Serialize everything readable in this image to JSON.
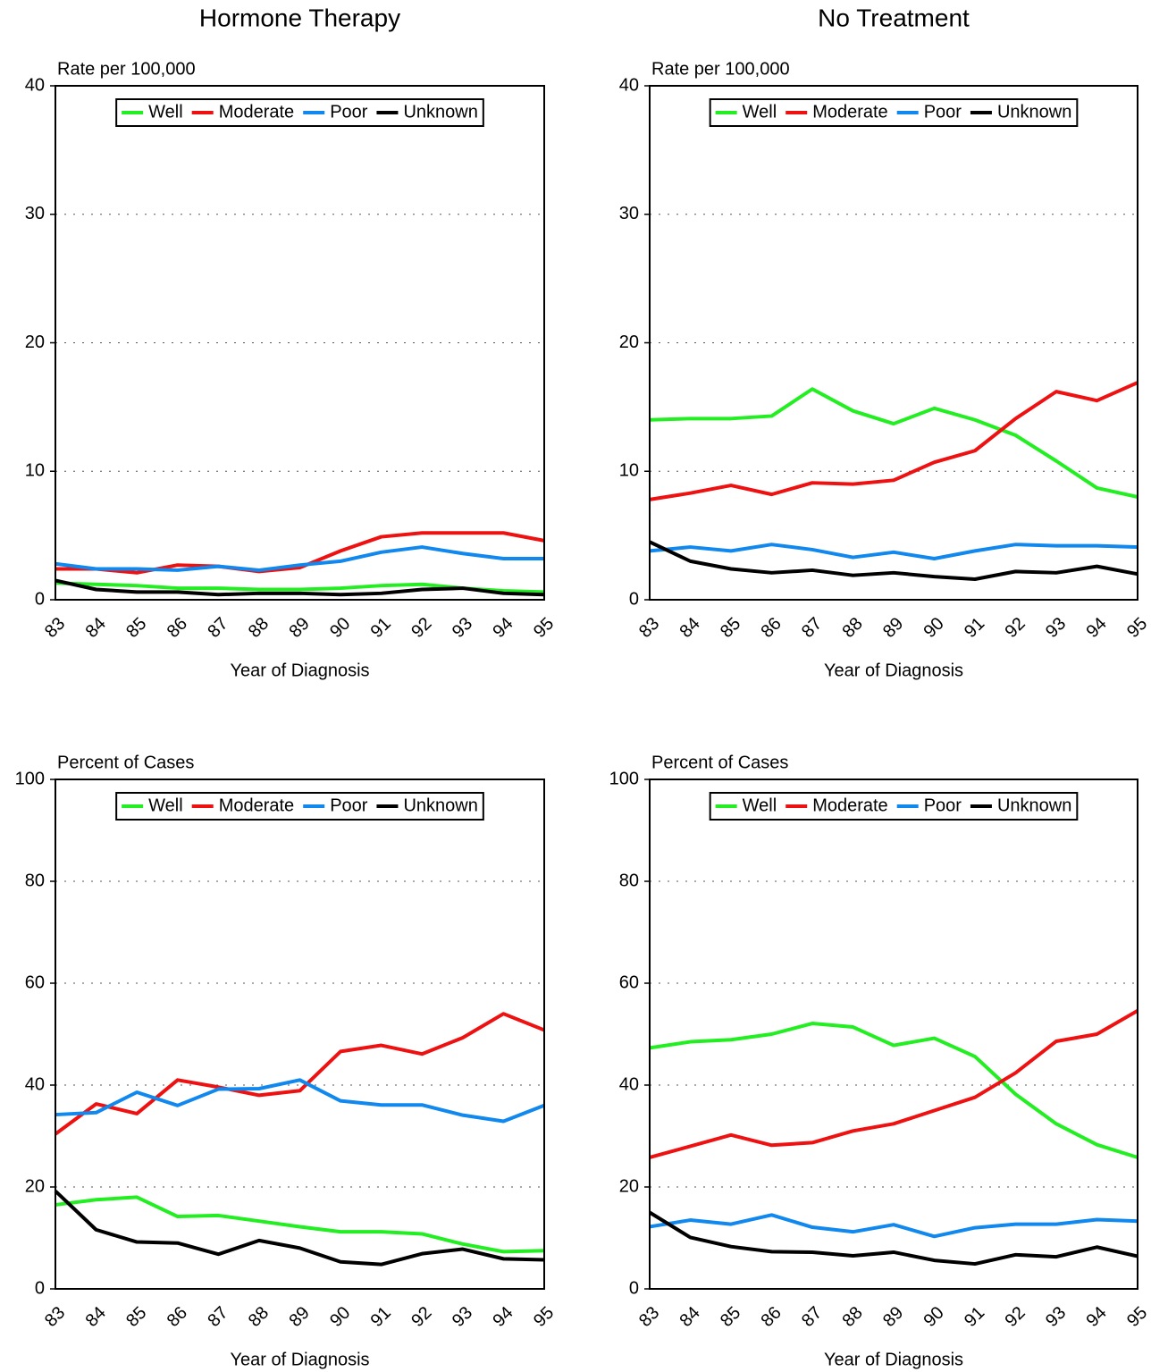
{
  "chart_data": [
    {
      "type": "line",
      "title": "Hormone Therapy",
      "y_label": "Rate per 100,000",
      "x_label": "Year of Diagnosis",
      "categories": [
        "83",
        "84",
        "85",
        "86",
        "87",
        "88",
        "89",
        "90",
        "91",
        "92",
        "93",
        "94",
        "95"
      ],
      "ylim": [
        0,
        40
      ],
      "yticks": [
        0,
        10,
        20,
        30,
        40
      ],
      "grid": true,
      "legend": "top",
      "series": [
        {
          "name": "Well",
          "color": "#22ee22",
          "values": [
            1.3,
            1.2,
            1.1,
            0.9,
            0.9,
            0.8,
            0.8,
            0.9,
            1.1,
            1.2,
            0.9,
            0.7,
            0.6
          ]
        },
        {
          "name": "Moderate",
          "color": "#ee1111",
          "values": [
            2.4,
            2.4,
            2.1,
            2.7,
            2.6,
            2.2,
            2.5,
            3.8,
            4.9,
            5.2,
            5.2,
            5.2,
            4.6
          ]
        },
        {
          "name": "Poor",
          "color": "#1188ee",
          "values": [
            2.8,
            2.4,
            2.4,
            2.3,
            2.6,
            2.3,
            2.7,
            3.0,
            3.7,
            4.1,
            3.6,
            3.2,
            3.2
          ]
        },
        {
          "name": "Unknown",
          "color": "#000000",
          "values": [
            1.5,
            0.8,
            0.6,
            0.6,
            0.4,
            0.5,
            0.5,
            0.4,
            0.5,
            0.8,
            0.9,
            0.5,
            0.4
          ]
        }
      ]
    },
    {
      "type": "line",
      "title": "No Treatment",
      "y_label": "Rate per 100,000",
      "x_label": "Year of Diagnosis",
      "categories": [
        "83",
        "84",
        "85",
        "86",
        "87",
        "88",
        "89",
        "90",
        "91",
        "92",
        "93",
        "94",
        "95"
      ],
      "ylim": [
        0,
        40
      ],
      "yticks": [
        0,
        10,
        20,
        30,
        40
      ],
      "grid": true,
      "legend": "top",
      "series": [
        {
          "name": "Well",
          "color": "#22ee22",
          "values": [
            14,
            14.1,
            14.1,
            14.3,
            16.4,
            14.7,
            13.7,
            14.9,
            14,
            12.8,
            10.8,
            8.7,
            8
          ]
        },
        {
          "name": "Moderate",
          "color": "#ee1111",
          "values": [
            7.8,
            8.3,
            8.9,
            8.2,
            9.1,
            9,
            9.3,
            10.7,
            11.6,
            14.1,
            16.2,
            15.5,
            16.9
          ]
        },
        {
          "name": "Poor",
          "color": "#1188ee",
          "values": [
            3.8,
            4.1,
            3.8,
            4.3,
            3.9,
            3.3,
            3.7,
            3.2,
            3.8,
            4.3,
            4.2,
            4.2,
            4.1
          ]
        },
        {
          "name": "Unknown",
          "color": "#000000",
          "values": [
            4.5,
            3,
            2.4,
            2.1,
            2.3,
            1.9,
            2.1,
            1.8,
            1.6,
            2.2,
            2.1,
            2.6,
            2
          ]
        }
      ]
    },
    {
      "type": "line",
      "y_label": "Percent of Cases",
      "x_label": "Year of Diagnosis",
      "categories": [
        "83",
        "84",
        "85",
        "86",
        "87",
        "88",
        "89",
        "90",
        "91",
        "92",
        "93",
        "94",
        "95"
      ],
      "ylim": [
        0,
        100
      ],
      "yticks": [
        0,
        20,
        40,
        60,
        80,
        100
      ],
      "grid": true,
      "legend": "top",
      "series": [
        {
          "name": "Well",
          "color": "#22ee22",
          "values": [
            16.5,
            17.5,
            18,
            14.2,
            14.4,
            13.3,
            12.2,
            11.2,
            11.2,
            10.8,
            8.8,
            7.3,
            7.5
          ]
        },
        {
          "name": "Moderate",
          "color": "#ee1111",
          "values": [
            30.4,
            36.3,
            34.4,
            41,
            39.6,
            38,
            38.9,
            46.6,
            47.8,
            46.1,
            49.3,
            54,
            50.8
          ]
        },
        {
          "name": "Poor",
          "color": "#1188ee",
          "values": [
            34.2,
            34.6,
            38.6,
            36,
            39.2,
            39.3,
            41,
            36.9,
            36.1,
            36.1,
            34.1,
            32.9,
            36
          ]
        },
        {
          "name": "Unknown",
          "color": "#000000",
          "values": [
            19.2,
            11.6,
            9.2,
            9,
            6.8,
            9.5,
            8,
            5.3,
            4.8,
            6.9,
            7.8,
            5.9,
            5.7
          ]
        }
      ]
    },
    {
      "type": "line",
      "y_label": "Percent of Cases",
      "x_label": "Year of Diagnosis",
      "categories": [
        "83",
        "84",
        "85",
        "86",
        "87",
        "88",
        "89",
        "90",
        "91",
        "92",
        "93",
        "94",
        "95"
      ],
      "ylim": [
        0,
        100
      ],
      "yticks": [
        0,
        20,
        40,
        60,
        80,
        100
      ],
      "grid": true,
      "legend": "top",
      "series": [
        {
          "name": "Well",
          "color": "#22ee22",
          "values": [
            47.3,
            48.5,
            48.9,
            50,
            52.1,
            51.4,
            47.8,
            49.2,
            45.6,
            38.2,
            32.4,
            28.3,
            25.8
          ]
        },
        {
          "name": "Moderate",
          "color": "#ee1111",
          "values": [
            25.8,
            28,
            30.2,
            28.2,
            28.7,
            31,
            32.4,
            35,
            37.6,
            42.4,
            48.6,
            50,
            54.6
          ]
        },
        {
          "name": "Poor",
          "color": "#1188ee",
          "values": [
            12.2,
            13.5,
            12.7,
            14.5,
            12.1,
            11.2,
            12.6,
            10.3,
            12,
            12.7,
            12.7,
            13.6,
            13.3
          ]
        },
        {
          "name": "Unknown",
          "color": "#000000",
          "values": [
            15,
            10.1,
            8.3,
            7.3,
            7.2,
            6.5,
            7.2,
            5.6,
            4.9,
            6.7,
            6.3,
            8.2,
            6.4
          ]
        }
      ]
    }
  ]
}
